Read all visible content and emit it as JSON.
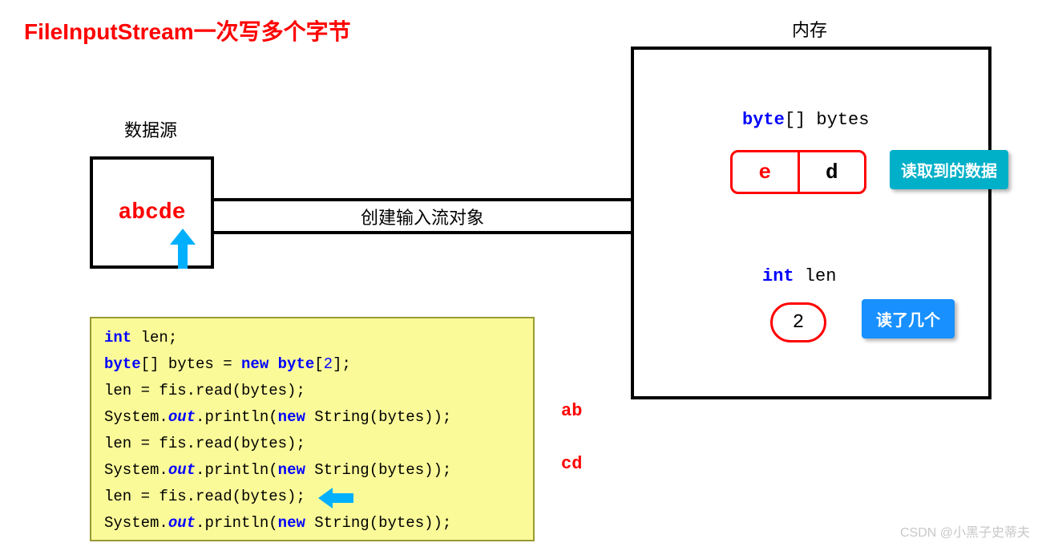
{
  "colors": {
    "red": "#ff0000",
    "keyword_blue": "#0000ff",
    "italic_blue": "#0000ff",
    "black": "#000000",
    "cyan": "#00b0c8",
    "bright_blue": "#1890ff",
    "code_bg": "#fafa99",
    "code_border": "#999933",
    "watermark": "#c8c8c8"
  },
  "title": "FileInputStream一次写多个字节",
  "data_source": {
    "label": "数据源",
    "content": "abcde"
  },
  "memory": {
    "label": "内存",
    "byte_decl_keyword": "byte",
    "byte_decl_rest": "[] bytes",
    "cells": [
      "e",
      "d"
    ],
    "cell_badge": "读取到的数据",
    "int_decl_keyword": "int",
    "int_decl_rest": " len",
    "len_value": "2",
    "len_badge": "读了几个"
  },
  "pipe_label": "创建输入流对象",
  "code": {
    "lines": [
      [
        {
          "t": "int ",
          "c": "keyword_blue",
          "b": true
        },
        {
          "t": "len;",
          "c": "black"
        }
      ],
      [
        {
          "t": "byte",
          "c": "keyword_blue",
          "b": true
        },
        {
          "t": "[] bytes = ",
          "c": "black"
        },
        {
          "t": "new byte",
          "c": "keyword_blue",
          "b": true
        },
        {
          "t": "[",
          "c": "black"
        },
        {
          "t": "2",
          "c": "keyword_blue"
        },
        {
          "t": "];",
          "c": "black"
        }
      ],
      [
        {
          "t": "len = fis.read(bytes);",
          "c": "black"
        }
      ],
      [
        {
          "t": "System.",
          "c": "black"
        },
        {
          "t": "out",
          "c": "italic_blue",
          "i": true,
          "b": true
        },
        {
          "t": ".println(",
          "c": "black"
        },
        {
          "t": "new ",
          "c": "keyword_blue",
          "b": true
        },
        {
          "t": "String(bytes));",
          "c": "black"
        }
      ],
      [
        {
          "t": "len = fis.read(bytes);",
          "c": "black"
        }
      ],
      [
        {
          "t": "System.",
          "c": "black"
        },
        {
          "t": "out",
          "c": "italic_blue",
          "i": true,
          "b": true
        },
        {
          "t": ".println(",
          "c": "black"
        },
        {
          "t": "new ",
          "c": "keyword_blue",
          "b": true
        },
        {
          "t": "String(bytes));",
          "c": "black"
        }
      ],
      [
        {
          "t": "len = fis.read(bytes);",
          "c": "black"
        }
      ],
      [
        {
          "t": "System.",
          "c": "black"
        },
        {
          "t": "out",
          "c": "italic_blue",
          "i": true,
          "b": true
        },
        {
          "t": ".println(",
          "c": "black"
        },
        {
          "t": "new ",
          "c": "keyword_blue",
          "b": true
        },
        {
          "t": "String(bytes));",
          "c": "black"
        }
      ]
    ],
    "outputs": [
      "ab",
      "cd"
    ]
  },
  "watermark": "CSDN @小黑子史蒂夫"
}
